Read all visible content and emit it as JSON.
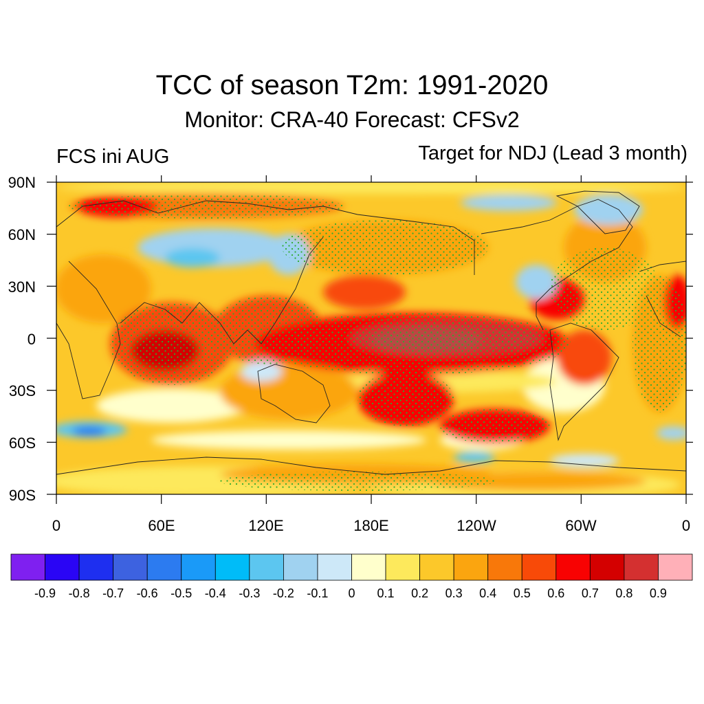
{
  "title": "TCC of season T2m: 1991-2020",
  "subtitle": "Monitor: CRA-40   Forecast: CFSv2",
  "left_label": "FCS ini AUG",
  "right_label": "Target for NDJ (Lead 3 month)",
  "lat_ticks": [
    "90N",
    "60N",
    "30N",
    "0",
    "30S",
    "60S",
    "90S"
  ],
  "lon_ticks": [
    "0",
    "60E",
    "120E",
    "180E",
    "120W",
    "60W",
    "0"
  ],
  "colorbar": {
    "labels": [
      "-0.9",
      "-0.8",
      "-0.7",
      "-0.6",
      "-0.5",
      "-0.4",
      "-0.3",
      "-0.2",
      "-0.1",
      "0",
      "0.1",
      "0.2",
      "0.3",
      "0.4",
      "0.5",
      "0.6",
      "0.7",
      "0.8",
      "0.9"
    ],
    "colors": [
      "#7f20f0",
      "#2a05f5",
      "#1e2ff0",
      "#3d62e0",
      "#2c7bf0",
      "#1a9af8",
      "#00bcf8",
      "#5cc6f0",
      "#a0d2f0",
      "#cde8f8",
      "#ffffcc",
      "#fde95c",
      "#fcc82a",
      "#fba50f",
      "#f8780a",
      "#f84a08",
      "#f80202",
      "#d40000",
      "#d43030",
      "#ffb0b8"
    ]
  }
}
